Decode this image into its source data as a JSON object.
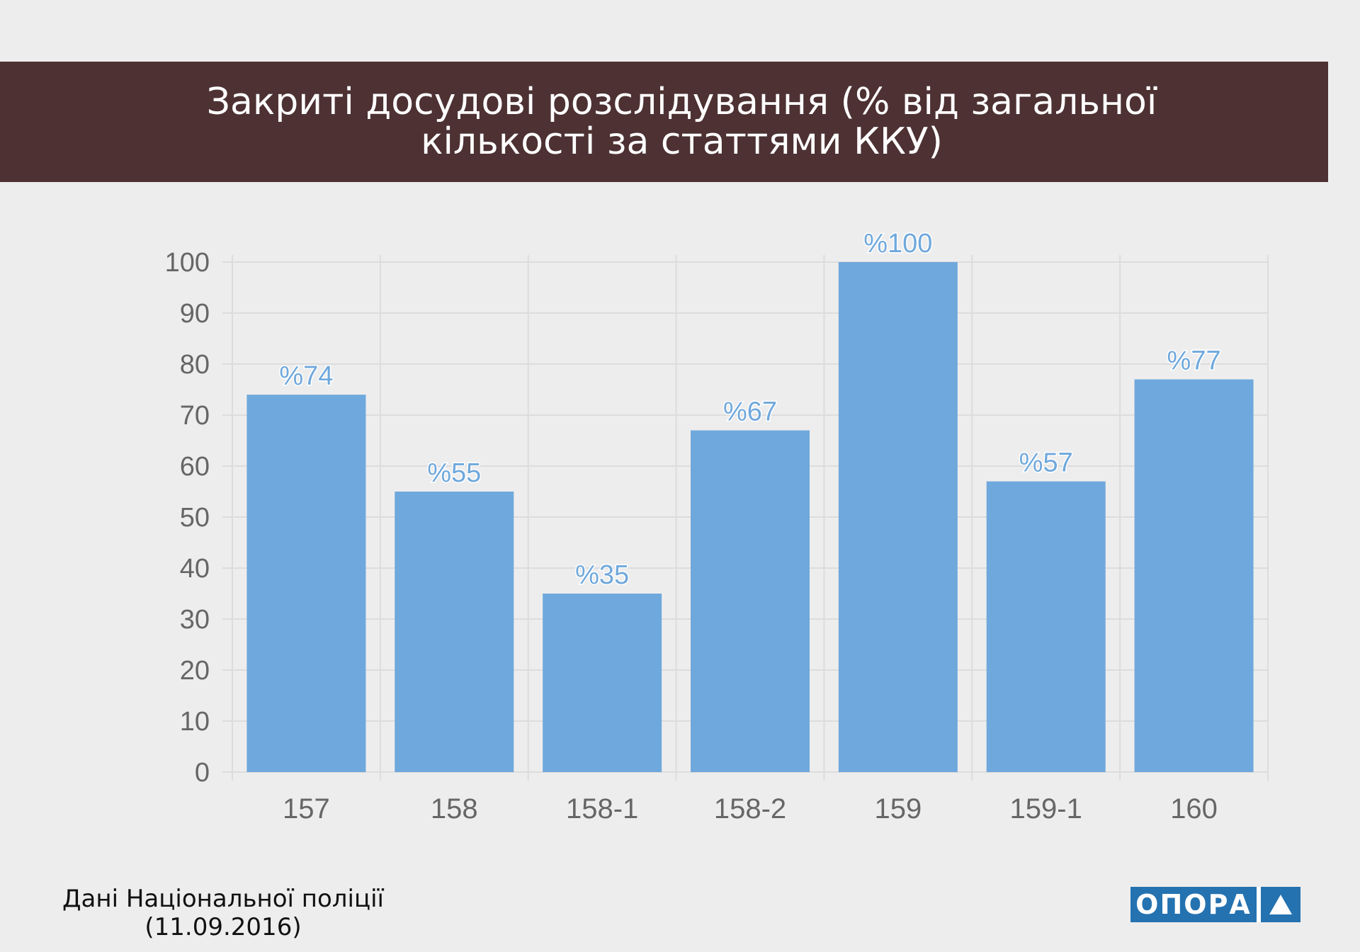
{
  "title": "Закриті досудові розслідування (% від загальної\nкількості за статтями ККУ)",
  "source": {
    "line1": "Дані Національної поліції",
    "line2": "(11.09.2016)"
  },
  "logo": {
    "text": "ОПОРА",
    "icon": "triangle-icon"
  },
  "colors": {
    "banner": "#4d3133",
    "bar": "#6fa8dc",
    "label": "#6fa8dc",
    "tick": "#666666",
    "grid": "#dcdcdc",
    "logo": "#2472b0"
  },
  "chart_data": {
    "type": "bar",
    "categories": [
      "157",
      "158",
      "158-1",
      "158-2",
      "159",
      "159-1",
      "160"
    ],
    "values": [
      74,
      55,
      35,
      67,
      100,
      57,
      77
    ],
    "data_labels": [
      "%74",
      "%55",
      "%35",
      "%67",
      "%100",
      "%57",
      "%77"
    ],
    "title": "Закриті досудові розслідування (% від загальної кількості за статтями ККУ)",
    "xlabel": "",
    "ylabel": "",
    "ylim": [
      0,
      100
    ],
    "yticks": [
      "0",
      "10",
      "20",
      "30",
      "40",
      "50",
      "60",
      "70",
      "80",
      "90",
      "100"
    ],
    "grid": true
  }
}
